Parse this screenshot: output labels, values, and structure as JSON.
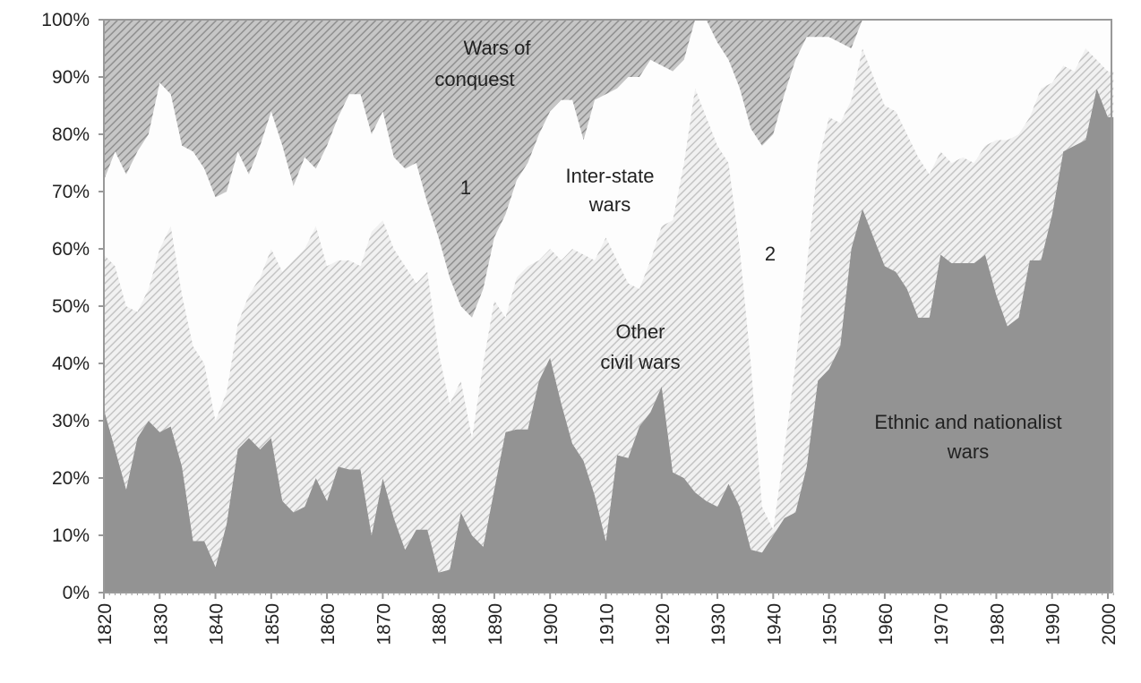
{
  "chart_data": {
    "type": "area",
    "stacked": true,
    "values_are_cumulative_upper_bounds": true,
    "title": "",
    "xlabel": "",
    "ylabel": "",
    "xlim": [
      1820,
      2001
    ],
    "ylim": [
      0,
      100
    ],
    "y_ticks": [
      "0%",
      "10%",
      "20%",
      "30%",
      "40%",
      "50%",
      "60%",
      "70%",
      "80%",
      "90%",
      "100%"
    ],
    "x_ticks": [
      "1820",
      "1830",
      "1840",
      "1850",
      "1860",
      "1870",
      "1880",
      "1890",
      "1900",
      "1910",
      "1920",
      "1930",
      "1940",
      "1950",
      "1960",
      "1970",
      "1980",
      "1990",
      "2000"
    ],
    "x_start": 1820,
    "x_step": 2,
    "series": [
      {
        "name": "Ethnic and nationalist wars",
        "label_lines": [
          "Ethnic and nationalist",
          "wars"
        ],
        "color": "#939393",
        "values": [
          32,
          25,
          18,
          27,
          30,
          28,
          29,
          22,
          9,
          9,
          4.5,
          12,
          25,
          27,
          25,
          27,
          16,
          14,
          15,
          20,
          16,
          22,
          21.5,
          21.5,
          10,
          20,
          13,
          7.5,
          11,
          11,
          3.5,
          4,
          14,
          10,
          8,
          18,
          28,
          28.5,
          28.5,
          37,
          41,
          33,
          26,
          23,
          17,
          9,
          24,
          23.5,
          29,
          31.5,
          36,
          21,
          20,
          17.5,
          16,
          15,
          19,
          15,
          7.5,
          7,
          10,
          13,
          14,
          22,
          37,
          39,
          43,
          60,
          67,
          62,
          57,
          56,
          53,
          48,
          48,
          59,
          57.5,
          57.5,
          57.5,
          59,
          52,
          46.5,
          48,
          58,
          58,
          66,
          77,
          78,
          79,
          88,
          83
        ]
      },
      {
        "name": "Other civil wars",
        "label_lines": [
          "Other",
          "civil wars"
        ],
        "color": "#d4d4d4",
        "values": [
          59,
          57,
          50,
          49,
          53,
          60,
          64,
          52,
          43,
          40,
          30,
          35,
          47,
          52,
          55,
          60,
          56,
          58,
          60,
          64,
          57,
          58,
          58,
          57,
          63,
          65,
          60,
          57,
          54,
          56,
          42,
          33,
          37,
          27,
          40,
          51,
          48,
          55,
          57,
          58,
          60,
          58,
          60,
          59,
          58,
          62,
          58,
          54,
          53,
          58,
          64,
          65,
          75,
          88,
          83,
          78,
          75,
          60,
          40,
          15,
          11,
          25,
          40,
          57,
          75,
          83,
          82,
          86,
          95,
          90,
          85,
          84,
          80,
          76,
          73,
          77,
          75,
          76,
          75,
          78,
          79,
          79,
          80,
          83,
          88,
          89,
          92,
          91,
          95,
          93,
          91
        ]
      },
      {
        "name": "Inter-state wars",
        "label_lines": [
          "Inter-state",
          "wars"
        ],
        "color": "#fdfdfd",
        "values": [
          72,
          77,
          73,
          77,
          80,
          89,
          87,
          78,
          77,
          74,
          69,
          70,
          77,
          73,
          78,
          84,
          78,
          71,
          76,
          74,
          78,
          83,
          87,
          87,
          80,
          84,
          76,
          74,
          75,
          68,
          62,
          55,
          50,
          48,
          53,
          62,
          66,
          72,
          75,
          80,
          84,
          86,
          86,
          79,
          86,
          87,
          88,
          90,
          90,
          93,
          92,
          91,
          93,
          100,
          100,
          96,
          93,
          88,
          81,
          78,
          80,
          87,
          93,
          97,
          97,
          97,
          96,
          95,
          100,
          100,
          100,
          100,
          100,
          100,
          100,
          100,
          100,
          100,
          100,
          100,
          100,
          100,
          100,
          100,
          100,
          100,
          100,
          100,
          100,
          100,
          100
        ]
      },
      {
        "name": "Wars of conquest",
        "label_lines": [
          "Wars of",
          "conquest"
        ],
        "color": "#a8a8a8",
        "values": [
          100,
          100,
          100,
          100,
          100,
          100,
          100,
          100,
          100,
          100,
          100,
          100,
          100,
          100,
          100,
          100,
          100,
          100,
          100,
          100,
          100,
          100,
          100,
          100,
          100,
          100,
          100,
          100,
          100,
          100,
          100,
          100,
          100,
          100,
          100,
          100,
          100,
          100,
          100,
          100,
          100,
          100,
          100,
          100,
          100,
          100,
          100,
          100,
          100,
          100,
          100,
          100,
          100,
          100,
          100,
          100,
          100,
          100,
          100,
          100,
          100,
          100,
          100,
          100,
          100,
          100,
          100,
          100,
          100,
          100,
          100,
          100,
          100,
          100,
          100,
          100,
          100,
          100,
          100,
          100,
          100,
          100,
          100,
          100,
          100,
          100,
          100,
          100,
          100,
          100,
          100
        ]
      }
    ],
    "annotations": [
      "1",
      "2"
    ]
  }
}
